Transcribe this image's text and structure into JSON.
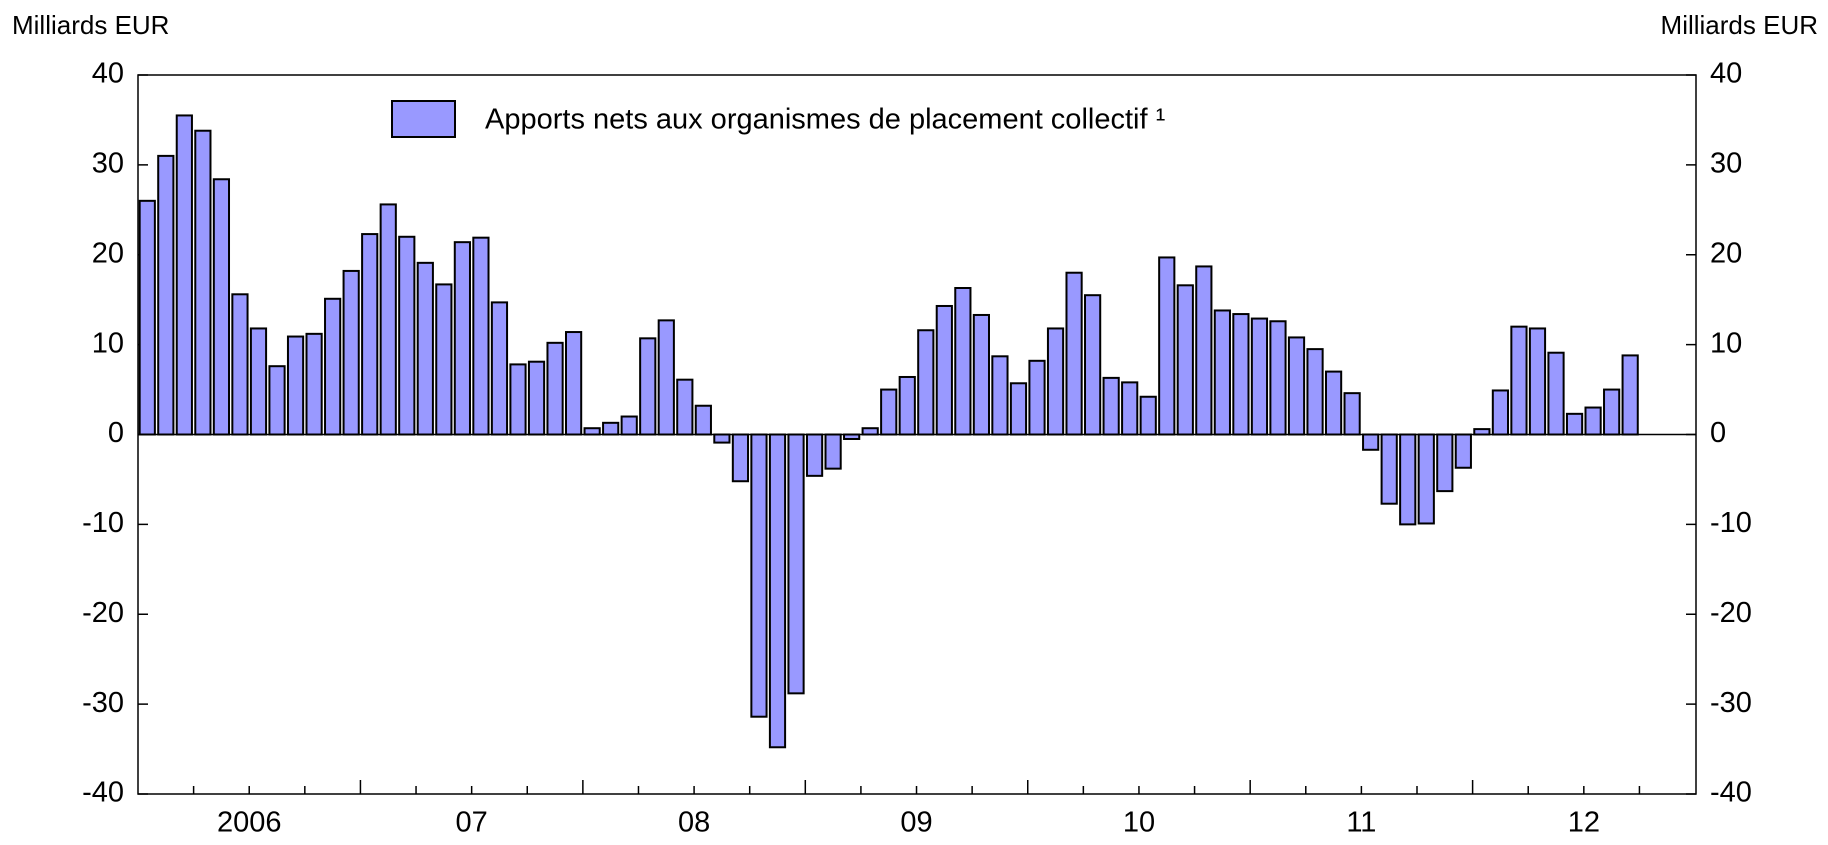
{
  "chart_data": {
    "type": "bar",
    "y_label": "Milliards EUR",
    "y2_label": "Milliards EUR",
    "year_labels": [
      "2006",
      "07",
      "08",
      "09",
      "10",
      "11",
      "12"
    ],
    "series": [
      {
        "name": "Apports nets aux organismes de placement collectif ¹",
        "color": "#9999ff",
        "values": [
          26,
          31,
          35.5,
          33.8,
          28.4,
          15.6,
          11.8,
          7.6,
          10.9,
          11.2,
          15.1,
          18.2,
          22.3,
          25.6,
          22,
          19.1,
          16.7,
          21.4,
          21.9,
          14.7,
          7.8,
          8.1,
          10.2,
          11.4,
          0.7,
          1.3,
          2,
          10.7,
          12.7,
          6.1,
          3.2,
          -0.9,
          -5.2,
          -31.4,
          -34.8,
          -28.8,
          -4.6,
          -3.8,
          -0.5,
          0.7,
          5,
          6.4,
          11.6,
          14.3,
          16.3,
          13.3,
          8.7,
          5.7,
          8.2,
          11.8,
          18,
          15.5,
          6.3,
          5.8,
          4.2,
          19.7,
          16.6,
          18.7,
          13.8,
          13.4,
          12.9,
          12.6,
          10.8,
          9.5,
          7,
          4.6,
          -1.7,
          -7.7,
          -10,
          -9.9,
          -6.3,
          -3.7,
          0.6,
          4.9,
          12,
          11.8,
          9.1,
          2.3,
          3,
          5,
          8.8
        ]
      }
    ],
    "ylim": [
      -40,
      40
    ],
    "yticks": [
      -40,
      -30,
      -20,
      -10,
      0,
      10,
      20,
      30,
      40
    ],
    "y2lim": [
      -40,
      40
    ],
    "y2ticks": [
      -40,
      -30,
      -20,
      -10,
      0,
      10,
      20,
      30,
      40
    ]
  }
}
